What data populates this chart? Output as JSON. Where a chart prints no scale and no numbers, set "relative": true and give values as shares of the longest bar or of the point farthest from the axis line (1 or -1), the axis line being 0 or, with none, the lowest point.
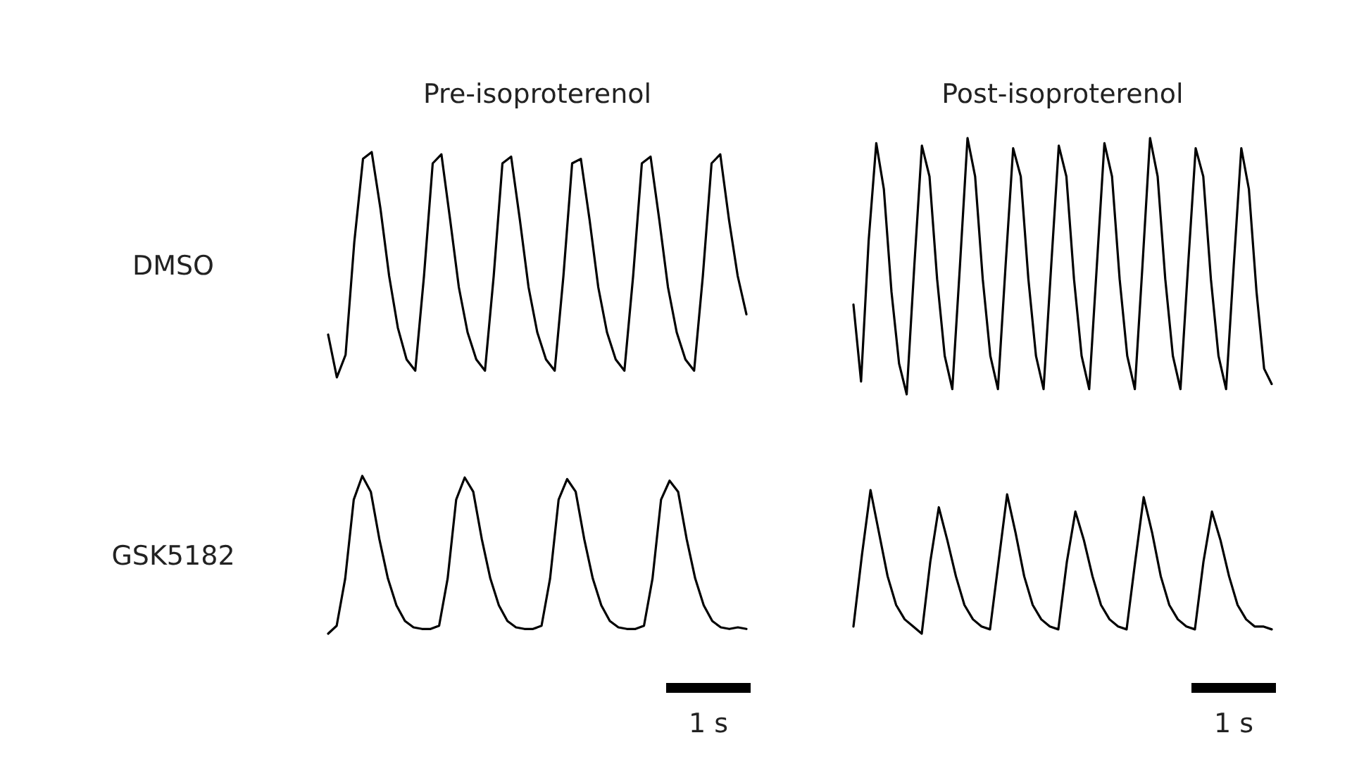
{
  "chart_data": [
    {
      "type": "line",
      "title": "Pre-isoproterenol",
      "ylabel": "DMSO",
      "relative": true,
      "categories": [
        null,
        null,
        null,
        null,
        null,
        null,
        null,
        null,
        null,
        null,
        null,
        null,
        null,
        null,
        null,
        null,
        null,
        null,
        null,
        null,
        null,
        null,
        null,
        null,
        null,
        null,
        null,
        null,
        null,
        null,
        null,
        null,
        null,
        null,
        null,
        null,
        null,
        null,
        null,
        null,
        null,
        null,
        null,
        null,
        null,
        null,
        null,
        null,
        null
      ],
      "series": [
        {
          "color": "#000000",
          "values": [
            0.19,
            0,
            0.1,
            0.6,
            0.97,
            1.0,
            0.75,
            0.45,
            0.22,
            0.08,
            0.03,
            0.45,
            0.95,
            0.99,
            0.7,
            0.4,
            0.2,
            0.08,
            0.03,
            0.45,
            0.95,
            0.98,
            0.7,
            0.4,
            0.2,
            0.08,
            0.03,
            0.45,
            0.95,
            0.97,
            0.7,
            0.4,
            0.2,
            0.08,
            0.03,
            0.45,
            0.95,
            0.98,
            0.7,
            0.4,
            0.2,
            0.08,
            0.03,
            0.45,
            0.95,
            0.99,
            0.7,
            0.45,
            0.28
          ]
        }
      ]
    },
    {
      "type": "line",
      "title": "Post-isoproterenol",
      "relative": true,
      "categories": [
        null,
        null,
        null,
        null,
        null,
        null,
        null,
        null,
        null,
        null,
        null,
        null,
        null,
        null,
        null,
        null,
        null,
        null,
        null,
        null,
        null,
        null,
        null,
        null,
        null,
        null,
        null,
        null,
        null,
        null,
        null,
        null,
        null,
        null,
        null,
        null,
        null,
        null,
        null,
        null,
        null,
        null,
        null,
        null,
        null,
        null,
        null,
        null,
        null,
        null,
        null,
        null,
        null,
        null,
        null,
        null
      ],
      "series": [
        {
          "color": "#000000",
          "values": [
            0.35,
            0.05,
            0.6,
            0.98,
            0.8,
            0.4,
            0.12,
            0,
            0.5,
            0.97,
            0.85,
            0.45,
            0.15,
            0.02,
            0.5,
            1.0,
            0.85,
            0.45,
            0.15,
            0.02,
            0.5,
            0.96,
            0.85,
            0.45,
            0.15,
            0.02,
            0.5,
            0.97,
            0.85,
            0.45,
            0.15,
            0.02,
            0.5,
            0.98,
            0.85,
            0.45,
            0.15,
            0.02,
            0.5,
            1.0,
            0.85,
            0.45,
            0.15,
            0.02,
            0.5,
            0.96,
            0.85,
            0.45,
            0.15,
            0.02,
            0.5,
            0.96,
            0.8,
            0.4,
            0.1,
            0.04
          ]
        }
      ]
    },
    {
      "type": "line",
      "ylabel": "GSK5182",
      "relative": true,
      "categories": [
        null,
        null,
        null,
        null,
        null,
        null,
        null,
        null,
        null,
        null,
        null,
        null,
        null,
        null,
        null,
        null,
        null,
        null,
        null,
        null,
        null,
        null,
        null,
        null,
        null,
        null,
        null,
        null,
        null,
        null,
        null,
        null,
        null,
        null,
        null,
        null,
        null,
        null,
        null,
        null,
        null,
        null,
        null,
        null,
        null,
        null,
        null,
        null,
        null,
        null
      ],
      "series": [
        {
          "color": "#000000",
          "values": [
            0,
            0.05,
            0.35,
            0.85,
            1.0,
            0.9,
            0.6,
            0.35,
            0.18,
            0.08,
            0.04,
            0.03,
            0.03,
            0.05,
            0.35,
            0.85,
            0.99,
            0.9,
            0.6,
            0.35,
            0.18,
            0.08,
            0.04,
            0.03,
            0.03,
            0.05,
            0.35,
            0.85,
            0.98,
            0.9,
            0.6,
            0.35,
            0.18,
            0.08,
            0.04,
            0.03,
            0.03,
            0.05,
            0.35,
            0.85,
            0.97,
            0.9,
            0.6,
            0.35,
            0.18,
            0.08,
            0.04,
            0.03,
            0.04,
            0.03
          ]
        }
      ],
      "annotations": [
        "1 s"
      ]
    },
    {
      "type": "line",
      "relative": true,
      "categories": [
        null,
        null,
        null,
        null,
        null,
        null,
        null,
        null,
        null,
        null,
        null,
        null,
        null,
        null,
        null,
        null,
        null,
        null,
        null,
        null,
        null,
        null,
        null,
        null,
        null,
        null,
        null,
        null,
        null,
        null,
        null,
        null,
        null,
        null,
        null,
        null,
        null,
        null,
        null,
        null,
        null,
        null,
        null,
        null,
        null,
        null,
        null,
        null,
        null,
        null
      ],
      "series": [
        {
          "color": "#000000",
          "values": [
            0.05,
            0.55,
            1.0,
            0.7,
            0.4,
            0.2,
            0.1,
            0.05,
            0,
            0.5,
            0.88,
            0.65,
            0.4,
            0.2,
            0.1,
            0.05,
            0.03,
            0.5,
            0.97,
            0.7,
            0.4,
            0.2,
            0.1,
            0.05,
            0.03,
            0.5,
            0.85,
            0.65,
            0.4,
            0.2,
            0.1,
            0.05,
            0.03,
            0.5,
            0.95,
            0.7,
            0.4,
            0.2,
            0.1,
            0.05,
            0.03,
            0.5,
            0.85,
            0.65,
            0.4,
            0.2,
            0.1,
            0.05,
            0.05,
            0.03
          ]
        }
      ],
      "annotations": [
        "1 s"
      ]
    }
  ]
}
